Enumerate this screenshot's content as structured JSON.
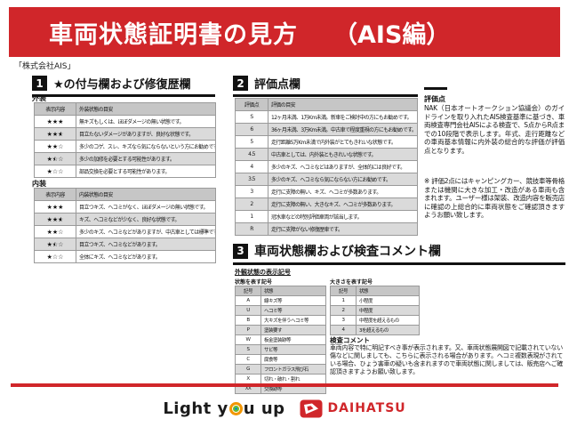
{
  "header": {
    "title": "車両状態証明書の見方",
    "edition": "（AIS編）"
  },
  "company": "「株式会社AIS」",
  "section1": {
    "number": "1",
    "title": "★の付与欄および修復歴欄",
    "exterior": {
      "label": "外装",
      "headers": [
        "表示内容",
        "外装状態の目安"
      ],
      "rows": [
        {
          "stars": 3,
          "text": "無キズもしくは、ほぼダメージの無い状態です。"
        },
        {
          "stars": 2.5,
          "text": "目立たないダメージがありますが、良好な状態です。"
        },
        {
          "stars": 2,
          "text": "多少のコゲ、スレ、キズなら気にならないという方にお勧めです。"
        },
        {
          "stars": 1.5,
          "text": "多少の加修を必要とする可能性があります。"
        },
        {
          "stars": 1,
          "text": "部品交換を必要とする可能性があります。"
        }
      ]
    },
    "interior": {
      "label": "内装",
      "headers": [
        "表示内容",
        "内装状態の目安"
      ],
      "rows": [
        {
          "stars": 3,
          "text": "目立つキズ、ヘコミがなく、ほぼダメージの無い状態です。"
        },
        {
          "stars": 2.5,
          "text": "キズ、ヘコミなどが少なく、良好な状態です。"
        },
        {
          "stars": 2,
          "text": "多少のキズ、ヘコミなどがありますが、中古車としては標準です。"
        },
        {
          "stars": 1.5,
          "text": "目立つキズ、ヘコミなどがあります。"
        },
        {
          "stars": 1,
          "text": "全体にキズ、ヘコミなどがあります。"
        }
      ]
    }
  },
  "section2": {
    "number": "2",
    "title": "評価点欄",
    "table": {
      "headers": [
        "評価点",
        "評価の目安"
      ],
      "rows": [
        [
          "S",
          "12ヶ月未満、1万Km未満。新車をご検討中の方にもお勧めです。"
        ],
        [
          "6",
          "36ヶ月未満、3万Km未満。中古車で程度重視の方にもお勧めです。"
        ],
        [
          "5",
          "走行距離5万Km未満で内外装がとてもきれいな状態です。"
        ],
        [
          "4.5",
          "中古車としては、内外装ともきれいな状態です。"
        ],
        [
          "4",
          "多少のキズ、ヘコミなどはありますが、全体的には良好です。"
        ],
        [
          "3.5",
          "多少のキズ、ヘコミなら気にならない方にお勧めです。"
        ],
        [
          "3",
          "走行に支障の無い、キズ、ヘコミが多数あります。"
        ],
        [
          "2",
          "走行に支障の無い、大きなキズ、ヘコミが多数あります。"
        ],
        [
          "1",
          "冠水車などの特別評価車両が該当します。"
        ],
        [
          "R",
          "走行に支障がない修復歴車です。"
        ]
      ]
    },
    "sidebar": {
      "heading": "評価点",
      "body": "NAK（日本オートオークション協議会）のガイドラインを取り入れたAIS検査基準に基づき、車両検査専門会社AISによる検査で、S点からR点までの10段階で表示します。年式、走行距離などの車両基本情報に内外装の総合的な評価が評価点となります。",
      "note": "※ 評価2点にはキャンピングカー、競技車等骨格または機関に大きな加工・改造がある車両も含まれます。ユーザー様は架装、改造内容を販売店に確認の上総合的に車両状態をご確認頂きますようお願い致します。"
    }
  },
  "section3": {
    "number": "3",
    "title": "車両状態欄および検査コメント欄",
    "symbols_label": "外観状態の表示記号",
    "state_table": {
      "label": "状態を表す記号",
      "headers": [
        "記号",
        "状態"
      ],
      "rows": [
        [
          "A",
          "線キズ等"
        ],
        [
          "U",
          "ヘコミ等"
        ],
        [
          "B",
          "大キズを伴うヘコミ等"
        ],
        [
          "P",
          "塗装要す"
        ],
        [
          "W",
          "板金塗装跡等"
        ],
        [
          "S",
          "サビ等"
        ],
        [
          "C",
          "腐食等"
        ],
        [
          "G",
          "フロントガラス飛び石"
        ],
        [
          "X",
          "切れ・破れ・割れ"
        ],
        [
          "XX",
          "交換跡等"
        ]
      ]
    },
    "size_table": {
      "label": "大きさを表す記号",
      "headers": [
        "記号",
        "状態"
      ],
      "rows": [
        [
          "1",
          "小程度"
        ],
        [
          "2",
          "中程度"
        ],
        [
          "3",
          "中程度を超えるもの"
        ],
        [
          "4",
          "3を超えるもの"
        ]
      ]
    },
    "comment": {
      "heading": "検査コメント",
      "body": "車両内容で特に明記すべき事が表示されます。又、車両状態展開図で記載されていない傷などに関しましても、こちらに表示される場合があります。ヘコミ複数表現がされている場合、ひょう害車の疑いも含まれますので車両状態に関しましては、販売店へご確認頂きますようお願い致します。"
    }
  },
  "footer": {
    "slogan_left": "Light y",
    "slogan_right": "u up",
    "brand": "DAIHATSU"
  },
  "colors": {
    "accent_red": "#d0262a",
    "table_header_gray": "#c6c6c6",
    "zebra_gray": "#dadada",
    "icon_orange": "#f29600",
    "icon_green": "#6ab82d",
    "icon_teal": "#0097a7"
  }
}
